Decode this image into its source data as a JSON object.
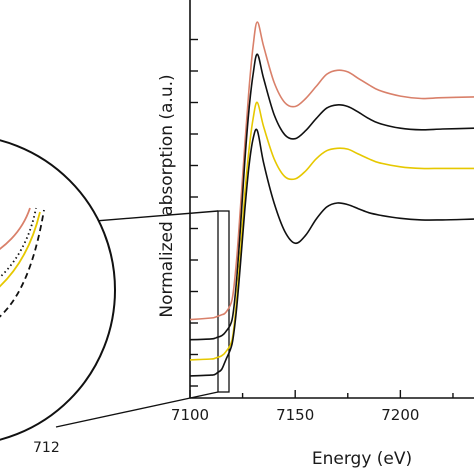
{
  "chart_data": {
    "type": "line",
    "xlabel": "Energy (eV)",
    "ylabel": "Normalized absorption (a.u.)",
    "xlim": [
      7100,
      7235
    ],
    "x_ticks": [
      "7100",
      "7150",
      "7200"
    ],
    "y_tick_count": 12,
    "grid": false,
    "legend": "none",
    "x": [
      7100,
      7110,
      7112,
      7113,
      7115,
      7117,
      7120,
      7122,
      7124,
      7126,
      7128,
      7130,
      7132,
      7135,
      7140,
      7145,
      7150,
      7155,
      7160,
      7165,
      7170,
      7175,
      7180,
      7185,
      7190,
      7200,
      7210,
      7220,
      7235
    ],
    "series": [
      {
        "color": "#d9806a",
        "values": [
          0.7,
          0.72,
          0.73,
          0.74,
          0.76,
          0.79,
          0.95,
          1.4,
          2.1,
          2.85,
          3.55,
          4.1,
          4.4,
          4.1,
          3.65,
          3.4,
          3.35,
          3.45,
          3.6,
          3.75,
          3.8,
          3.78,
          3.7,
          3.62,
          3.55,
          3.48,
          3.45,
          3.46,
          3.47
        ]
      },
      {
        "color": "#111111",
        "values": [
          0.45,
          0.46,
          0.47,
          0.48,
          0.5,
          0.55,
          0.7,
          1.15,
          1.85,
          2.65,
          3.3,
          3.75,
          4.0,
          3.7,
          3.25,
          3.0,
          2.95,
          3.05,
          3.2,
          3.33,
          3.37,
          3.35,
          3.28,
          3.2,
          3.14,
          3.08,
          3.06,
          3.07,
          3.08
        ]
      },
      {
        "color": "#e6c800",
        "values": [
          0.2,
          0.21,
          0.22,
          0.23,
          0.25,
          0.3,
          0.45,
          0.9,
          1.55,
          2.25,
          2.8,
          3.2,
          3.4,
          3.1,
          2.7,
          2.48,
          2.45,
          2.55,
          2.7,
          2.8,
          2.83,
          2.82,
          2.76,
          2.7,
          2.65,
          2.6,
          2.58,
          2.58,
          2.58
        ]
      },
      {
        "color": "#111111",
        "values": [
          0.0,
          0.01,
          0.02,
          0.04,
          0.08,
          0.2,
          0.4,
          0.8,
          1.4,
          2.05,
          2.6,
          2.95,
          3.05,
          2.65,
          2.15,
          1.8,
          1.65,
          1.75,
          1.95,
          2.1,
          2.15,
          2.13,
          2.08,
          2.03,
          2.0,
          1.96,
          1.94,
          1.94,
          1.95
        ]
      }
    ],
    "inset": {
      "x_tick_partial": "712",
      "curves": [
        {
          "color": "#d9806a",
          "style": "solid"
        },
        {
          "color": "#111111",
          "style": "dotted"
        },
        {
          "color": "#e6c800",
          "style": "solid"
        },
        {
          "color": "#111111",
          "style": "dashed"
        }
      ]
    }
  }
}
